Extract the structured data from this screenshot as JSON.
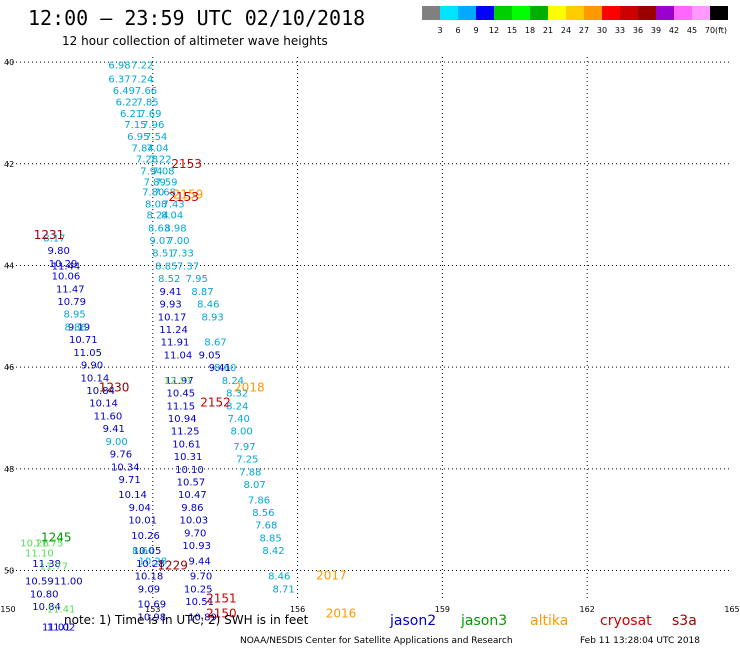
{
  "title": "12:00 – 23:59 UTC 02/10/2018",
  "subtitle": "12 hour collection of altimeter wave heights",
  "legend": {
    "labels": [
      "3",
      "6",
      "9",
      "12",
      "15",
      "18",
      "21",
      "24",
      "27",
      "30",
      "33",
      "36",
      "39",
      "42",
      "45",
      "70",
      "(ft)"
    ],
    "colors": [
      "#808080",
      "#00e5ff",
      "#00aaff",
      "#0000ff",
      "#00d000",
      "#00ff00",
      "#00b000",
      "#ffff00",
      "#ffcc00",
      "#ff9900",
      "#ff0000",
      "#cc0000",
      "#990000",
      "#9900cc",
      "#ff66ff",
      "#ff99ff",
      "#000000"
    ]
  },
  "map": {
    "lat_ticks": [
      "40",
      "42",
      "44",
      "46",
      "48",
      "50"
    ],
    "lon_ticks": [
      "150",
      "153",
      "156",
      "159",
      "162",
      "165"
    ],
    "lat_range": [
      -50.6,
      -39.9
    ],
    "lon_range": [
      150,
      165
    ]
  },
  "colors": {
    "jason2": "#0000cc",
    "jason3": "#009900",
    "altika": "#ff9900",
    "cryosat": "#cc0000",
    "s3a": "#990000",
    "lightblue": "#00a8d8",
    "green": "#55e055"
  },
  "tracks": [
    {
      "color": "#00a8d8",
      "points": [
        {
          "lat": -40.05,
          "lon": 152.31,
          "v": "6.98"
        },
        {
          "lat": -40.05,
          "lon": 152.78,
          "v": "7.22"
        },
        {
          "lat": -40.32,
          "lon": 152.31,
          "v": "6.37"
        },
        {
          "lat": -40.32,
          "lon": 152.78,
          "v": "7.24"
        },
        {
          "lat": -40.55,
          "lon": 152.4,
          "v": "6.49"
        },
        {
          "lat": -40.55,
          "lon": 152.86,
          "v": "7.66"
        },
        {
          "lat": -40.78,
          "lon": 152.46,
          "v": "6.22"
        },
        {
          "lat": -40.78,
          "lon": 152.89,
          "v": "7.85"
        },
        {
          "lat": -41.0,
          "lon": 152.55,
          "v": "6.21"
        },
        {
          "lat": -41.0,
          "lon": 152.95,
          "v": "7.69"
        },
        {
          "lat": -41.22,
          "lon": 152.64,
          "v": "7.15"
        },
        {
          "lat": -41.22,
          "lon": 153.01,
          "v": "7.96"
        },
        {
          "lat": -41.45,
          "lon": 152.7,
          "v": "6.95"
        },
        {
          "lat": -41.45,
          "lon": 153.07,
          "v": "7.54"
        },
        {
          "lat": -41.68,
          "lon": 152.79,
          "v": "7.84"
        },
        {
          "lat": -41.68,
          "lon": 153.1,
          "v": "7.04"
        },
        {
          "lat": -41.9,
          "lon": 152.88,
          "v": "7.28"
        },
        {
          "lat": -41.9,
          "lon": 153.16,
          "v": "7.22"
        },
        {
          "lat": -42.13,
          "lon": 152.97,
          "v": "7.94"
        },
        {
          "lat": -42.13,
          "lon": 153.22,
          "v": "7.08"
        },
        {
          "lat": -42.35,
          "lon": 153.04,
          "v": "7.89"
        },
        {
          "lat": -42.35,
          "lon": 153.28,
          "v": "7.59"
        },
        {
          "lat": -42.55,
          "lon": 153.01,
          "v": "7.80"
        },
        {
          "lat": -42.55,
          "lon": 153.25,
          "v": "7.68"
        },
        {
          "lat": -42.78,
          "lon": 153.07,
          "v": "8.08"
        },
        {
          "lat": -42.78,
          "lon": 153.43,
          "v": "7.43"
        },
        {
          "lat": -43.0,
          "lon": 153.1,
          "v": "8.24"
        },
        {
          "lat": -43.0,
          "lon": 153.4,
          "v": "8.04"
        },
        {
          "lat": -43.25,
          "lon": 153.13,
          "v": "8.63"
        },
        {
          "lat": -43.25,
          "lon": 153.47,
          "v": "8.98"
        },
        {
          "lat": -43.5,
          "lon": 153.16,
          "v": "9.07"
        },
        {
          "lat": -43.5,
          "lon": 153.53,
          "v": "7.00"
        },
        {
          "lat": -43.75,
          "lon": 153.22,
          "v": "8.51"
        },
        {
          "lat": -43.75,
          "lon": 153.62,
          "v": "7.33"
        },
        {
          "lat": -44.0,
          "lon": 153.28,
          "v": "8.85"
        },
        {
          "lat": -44.0,
          "lon": 153.73,
          "v": "7.37"
        },
        {
          "lat": -44.25,
          "lon": 153.34,
          "v": "8.52"
        },
        {
          "lat": -44.25,
          "lon": 153.91,
          "v": "7.95"
        },
        {
          "lat": -44.5,
          "lon": 154.03,
          "v": "8.87"
        },
        {
          "lat": -44.75,
          "lon": 154.15,
          "v": "8.46"
        },
        {
          "lat": -45.0,
          "lon": 154.24,
          "v": "8.93"
        },
        {
          "lat": -45.5,
          "lon": 154.3,
          "v": "8.67"
        },
        {
          "lat": -46.0,
          "lon": 154.5,
          "v": "8.60"
        },
        {
          "lat": -46.25,
          "lon": 154.66,
          "v": "8.24"
        },
        {
          "lat": -46.5,
          "lon": 154.75,
          "v": "8.32"
        },
        {
          "lat": -46.75,
          "lon": 154.75,
          "v": "8.24"
        },
        {
          "lat": -47.0,
          "lon": 154.78,
          "v": "7.40"
        },
        {
          "lat": -47.25,
          "lon": 154.84,
          "v": "8.00"
        },
        {
          "lat": -47.55,
          "lon": 154.9,
          "v": "7.97"
        },
        {
          "lat": -47.8,
          "lon": 154.96,
          "v": "7.25"
        },
        {
          "lat": -48.05,
          "lon": 155.02,
          "v": "7.88"
        },
        {
          "lat": -48.3,
          "lon": 155.11,
          "v": "8.07"
        },
        {
          "lat": -48.6,
          "lon": 155.2,
          "v": "7.86"
        },
        {
          "lat": -48.85,
          "lon": 155.29,
          "v": "8.56"
        },
        {
          "lat": -49.1,
          "lon": 155.35,
          "v": "7.68"
        },
        {
          "lat": -49.35,
          "lon": 155.44,
          "v": "8.85"
        },
        {
          "lat": -49.6,
          "lon": 155.5,
          "v": "8.42"
        },
        {
          "lat": -50.1,
          "lon": 155.62,
          "v": "8.46"
        },
        {
          "lat": -50.35,
          "lon": 155.71,
          "v": "8.71"
        }
      ]
    },
    {
      "color": "#0000cc",
      "points": [
        {
          "lat": -44.5,
          "lon": 153.37,
          "v": "9.41"
        },
        {
          "lat": -44.75,
          "lon": 153.37,
          "v": "9.93"
        },
        {
          "lat": -45.0,
          "lon": 153.4,
          "v": "10.17"
        },
        {
          "lat": -45.25,
          "lon": 153.43,
          "v": "11.24"
        },
        {
          "lat": -45.5,
          "lon": 153.46,
          "v": "11.91"
        },
        {
          "lat": -45.75,
          "lon": 153.52,
          "v": "11.04"
        },
        {
          "lat": -45.75,
          "lon": 154.18,
          "v": "9.05"
        },
        {
          "lat": -46.0,
          "lon": 154.39,
          "v": "9.41"
        },
        {
          "lat": -46.25,
          "lon": 153.55,
          "v": "11.97"
        },
        {
          "lat": -46.5,
          "lon": 153.58,
          "v": "10.45"
        },
        {
          "lat": -46.75,
          "lon": 153.58,
          "v": "11.15"
        },
        {
          "lat": -47.0,
          "lon": 153.61,
          "v": "10.94"
        },
        {
          "lat": -47.25,
          "lon": 153.67,
          "v": "11.25"
        },
        {
          "lat": -47.5,
          "lon": 153.7,
          "v": "10.61"
        },
        {
          "lat": -47.75,
          "lon": 153.73,
          "v": "10.31"
        },
        {
          "lat": -48.0,
          "lon": 153.76,
          "v": "10.10"
        },
        {
          "lat": -48.25,
          "lon": 153.79,
          "v": "10.57"
        },
        {
          "lat": -48.5,
          "lon": 153.82,
          "v": "10.47"
        },
        {
          "lat": -48.75,
          "lon": 153.82,
          "v": "9.86"
        },
        {
          "lat": -49.0,
          "lon": 153.85,
          "v": "10.03"
        },
        {
          "lat": -49.25,
          "lon": 153.88,
          "v": "9.70"
        },
        {
          "lat": -49.5,
          "lon": 153.91,
          "v": "10.93"
        },
        {
          "lat": -49.8,
          "lon": 153.97,
          "v": "9.44"
        },
        {
          "lat": -50.1,
          "lon": 154.0,
          "v": "9.70"
        },
        {
          "lat": -50.35,
          "lon": 153.94,
          "v": "10.25"
        },
        {
          "lat": -50.6,
          "lon": 153.97,
          "v": "10.51"
        },
        {
          "lat": -50.9,
          "lon": 154.03,
          "v": "10.89"
        },
        {
          "lat": -50.35,
          "lon": 152.92,
          "v": "9.09"
        },
        {
          "lat": -50.65,
          "lon": 152.98,
          "v": "10.69"
        },
        {
          "lat": -50.9,
          "lon": 152.98,
          "v": "10.98"
        },
        {
          "lat": -49.85,
          "lon": 152.95,
          "v": "10.28"
        },
        {
          "lat": -50.1,
          "lon": 152.92,
          "v": "10.18"
        },
        {
          "lat": -49.6,
          "lon": 152.88,
          "v": "10.05"
        },
        {
          "lat": -49.3,
          "lon": 152.85,
          "v": "10.26"
        },
        {
          "lat": -49.0,
          "lon": 152.79,
          "v": "10.01"
        },
        {
          "lat": -48.75,
          "lon": 152.73,
          "v": "9.04"
        },
        {
          "lat": -48.5,
          "lon": 152.58,
          "v": "10.14"
        },
        {
          "lat": -48.2,
          "lon": 152.52,
          "v": "9.71"
        },
        {
          "lat": -47.95,
          "lon": 152.43,
          "v": "10.34"
        },
        {
          "lat": -47.7,
          "lon": 152.34,
          "v": "9.76"
        },
        {
          "lat": -47.2,
          "lon": 152.19,
          "v": "9.41"
        },
        {
          "lat": -46.95,
          "lon": 152.07,
          "v": "11.60"
        },
        {
          "lat": -46.7,
          "lon": 151.98,
          "v": "10.14"
        },
        {
          "lat": -46.45,
          "lon": 151.92,
          "v": "10.84"
        },
        {
          "lat": -46.2,
          "lon": 151.8,
          "v": "10.14"
        },
        {
          "lat": -45.95,
          "lon": 151.74,
          "v": "9.90"
        },
        {
          "lat": -45.7,
          "lon": 151.65,
          "v": "11.05"
        },
        {
          "lat": -45.45,
          "lon": 151.56,
          "v": "10.71"
        },
        {
          "lat": -45.2,
          "lon": 151.47,
          "v": "9.19"
        },
        {
          "lat": -44.7,
          "lon": 151.32,
          "v": "10.79"
        },
        {
          "lat": -44.45,
          "lon": 151.29,
          "v": "11.47"
        },
        {
          "lat": -44.2,
          "lon": 151.2,
          "v": "10.06"
        },
        {
          "lat": -43.95,
          "lon": 151.14,
          "v": "10.29"
        },
        {
          "lat": -43.7,
          "lon": 151.05,
          "v": "9.80"
        },
        {
          "lat": -44.0,
          "lon": 151.2,
          "v": "11.44"
        },
        {
          "lat": -51.1,
          "lon": 151.0,
          "v": "11.01"
        },
        {
          "lat": -51.1,
          "lon": 151.1,
          "v": "11.02"
        },
        {
          "lat": -50.2,
          "lon": 150.65,
          "v": "10.59"
        },
        {
          "lat": -50.45,
          "lon": 150.75,
          "v": "10.80"
        },
        {
          "lat": -50.7,
          "lon": 150.8,
          "v": "10.84"
        }
      ]
    },
    {
      "color": "#00a8d8",
      "points": [
        {
          "lat": -43.45,
          "lon": 150.96,
          "v": "8.17"
        },
        {
          "lat": -44.95,
          "lon": 151.38,
          "v": "8.95"
        },
        {
          "lat": -45.2,
          "lon": 151.4,
          "v": "8.86"
        },
        {
          "lat": -47.45,
          "lon": 152.25,
          "v": "9.00"
        },
        {
          "lat": -49.6,
          "lon": 152.8,
          "v": "8.60"
        },
        {
          "lat": -49.8,
          "lon": 153.0,
          "v": "10.28"
        }
      ]
    },
    {
      "color": "#0000cc",
      "points": [
        {
          "lat": -49.85,
          "lon": 150.8,
          "v": "11.38"
        },
        {
          "lat": -50.2,
          "lon": 151.25,
          "v": "11.00"
        }
      ]
    },
    {
      "color": "#55e055",
      "points": [
        {
          "lat": -46.25,
          "lon": 153.52,
          "v": "12.21"
        },
        {
          "lat": -49.45,
          "lon": 150.55,
          "v": "10.26"
        },
        {
          "lat": -49.45,
          "lon": 150.85,
          "v": "11.75"
        },
        {
          "lat": -49.65,
          "lon": 150.65,
          "v": "11.10"
        },
        {
          "lat": -49.9,
          "lon": 150.95,
          "v": "11.77"
        },
        {
          "lat": -50.75,
          "lon": 151.1,
          "v": "11.41"
        }
      ]
    }
  ],
  "time_labels": [
    {
      "text": "2153",
      "lat": -42.0,
      "lon": 153.7,
      "color": "#cc0000"
    },
    {
      "text": "2159",
      "lat": -42.6,
      "lon": 153.73,
      "color": "#ff9900"
    },
    {
      "text": "2153",
      "lat": -42.65,
      "lon": 153.64,
      "color": "#cc0000"
    },
    {
      "text": "1231",
      "lat": -43.4,
      "lon": 150.85,
      "color": "#990000"
    },
    {
      "text": "1230",
      "lat": -46.4,
      "lon": 152.2,
      "color": "#990000"
    },
    {
      "text": "2018",
      "lat": -46.4,
      "lon": 155.0,
      "color": "#ff9900"
    },
    {
      "text": "2152",
      "lat": -46.7,
      "lon": 154.3,
      "color": "#cc0000"
    },
    {
      "text": "1229",
      "lat": -49.9,
      "lon": 153.41,
      "color": "#990000"
    },
    {
      "text": "2017",
      "lat": -50.1,
      "lon": 156.7,
      "color": "#ff9900"
    },
    {
      "text": "2151",
      "lat": -50.55,
      "lon": 154.42,
      "color": "#cc0000"
    },
    {
      "text": "2150",
      "lat": -50.85,
      "lon": 154.42,
      "color": "#cc0000"
    },
    {
      "text": "2016",
      "lat": -50.85,
      "lon": 156.9,
      "color": "#ff9900"
    },
    {
      "text": "1245",
      "lat": -49.35,
      "lon": 151.0,
      "color": "#009900"
    }
  ],
  "note": "note:  1) Time is in UTC;  2) SWH is in feet",
  "satellites": [
    {
      "name": "jason2",
      "color": "#0000cc"
    },
    {
      "name": "jason3",
      "color": "#009900"
    },
    {
      "name": "altika",
      "color": "#ff9900"
    },
    {
      "name": "cryosat",
      "color": "#cc0000"
    },
    {
      "name": "s3a",
      "color": "#990000"
    }
  ],
  "credit": "NOAA/NESDIS Center for Satellite Applications and Research",
  "timestamp": "Feb 11 13:28:04 UTC 2018"
}
